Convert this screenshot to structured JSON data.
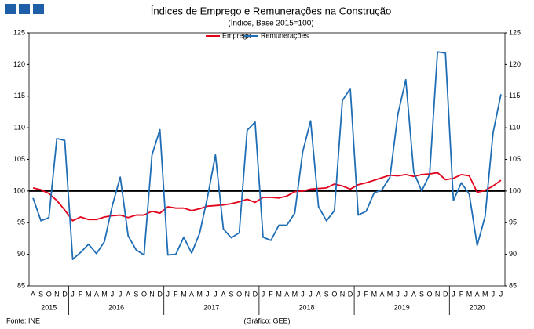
{
  "chart_data": {
    "type": "line",
    "title": "Índices de Emprego e Remunerações na Construção",
    "subtitle": "(Índice, Base 2015=100)",
    "source": "Fonte: INE",
    "credit": "(Gráfico: GEE)",
    "categories": [
      "A",
      "S",
      "O",
      "N",
      "D",
      "J",
      "F",
      "M",
      "A",
      "M",
      "J",
      "J",
      "A",
      "S",
      "O",
      "N",
      "D",
      "J",
      "F",
      "M",
      "A",
      "M",
      "J",
      "J",
      "A",
      "S",
      "O",
      "N",
      "D",
      "J",
      "F",
      "M",
      "A",
      "M",
      "J",
      "J",
      "A",
      "S",
      "O",
      "N",
      "D",
      "J",
      "F",
      "M",
      "A",
      "M",
      "J",
      "J",
      "A",
      "S",
      "O",
      "N",
      "D",
      "J",
      "F",
      "M",
      "A",
      "M",
      "J",
      "J"
    ],
    "years": [
      "2015",
      null,
      null,
      null,
      null,
      "2016",
      null,
      null,
      null,
      null,
      null,
      null,
      null,
      null,
      null,
      null,
      null,
      "2017",
      null,
      null,
      null,
      null,
      null,
      null,
      null,
      null,
      null,
      null,
      null,
      "2018",
      null,
      null,
      null,
      null,
      null,
      null,
      null,
      null,
      null,
      null,
      null,
      "2019",
      null,
      null,
      null,
      null,
      null,
      null,
      null,
      null,
      null,
      null,
      null,
      "2020",
      null,
      null,
      null,
      null,
      null,
      null
    ],
    "series": [
      {
        "name": "Emprego",
        "color": "#e3001b",
        "values": [
          100.5,
          100.2,
          99.6,
          98.5,
          97.0,
          95.3,
          95.9,
          95.5,
          95.5,
          95.9,
          96.1,
          96.2,
          95.8,
          96.2,
          96.2,
          96.8,
          96.5,
          97.5,
          97.3,
          97.3,
          96.9,
          97.2,
          97.6,
          97.7,
          97.8,
          98.0,
          98.3,
          98.7,
          98.2,
          99.0,
          99.0,
          98.9,
          99.2,
          99.9,
          100.0,
          100.3,
          100.4,
          100.5,
          101.1,
          100.8,
          100.3,
          101.0,
          101.3,
          101.7,
          102.1,
          102.5,
          102.4,
          102.6,
          102.3,
          102.6,
          102.7,
          102.9,
          101.8,
          102.0,
          102.6,
          102.4,
          99.8,
          100.1,
          100.8,
          101.7
        ]
      },
      {
        "name": "Remunerações",
        "color": "#1f6eb5",
        "values": [
          98.9,
          95.3,
          95.8,
          108.3,
          108.0,
          89.2,
          90.3,
          91.6,
          90.1,
          92.0,
          97.7,
          102.2,
          92.9,
          90.7,
          89.9,
          105.7,
          109.7,
          89.9,
          90.0,
          92.7,
          90.2,
          93.3,
          99.0,
          105.7,
          94.0,
          92.6,
          93.4,
          109.6,
          110.9,
          92.7,
          92.2,
          94.6,
          94.6,
          96.5,
          106.2,
          111.1,
          97.5,
          95.3,
          96.9,
          114.3,
          116.2,
          96.2,
          96.8,
          99.7,
          100.2,
          102.2,
          112.1,
          117.6,
          103.0,
          100.0,
          102.6,
          122.0,
          121.8,
          98.5,
          101.3,
          99.5,
          91.4,
          96.0,
          109.2,
          115.3
        ]
      }
    ],
    "reference_line": 100,
    "ylim": [
      85,
      125
    ],
    "yticks": [
      85,
      90,
      95,
      100,
      105,
      110,
      115,
      120,
      125
    ],
    "y2lim": [
      85,
      125
    ],
    "y2ticks": [
      85,
      90,
      95,
      100,
      105,
      110,
      115,
      120,
      125
    ],
    "legend": "top"
  }
}
